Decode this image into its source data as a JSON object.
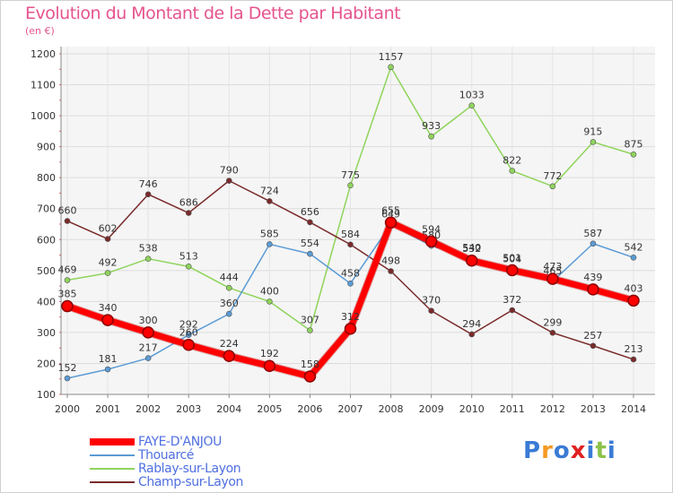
{
  "header": {
    "title": "Evolution du Montant de la Dette par Habitant",
    "subtitle": "(en €)"
  },
  "logo": {
    "text": "Proxiti",
    "colors": [
      "#3a7bd5",
      "#f59a23",
      "#3a7bd5",
      "#e02020",
      "#3a7bd5",
      "#8bc34a",
      "#3a7bd5"
    ]
  },
  "chart_data": {
    "type": "line",
    "title": "Evolution du Montant de la Dette par Habitant",
    "subtitle": "(en €)",
    "x": [
      "2000",
      "2001",
      "2002",
      "2003",
      "2004",
      "2005",
      "2006",
      "2007",
      "2008",
      "2009",
      "2010",
      "2011",
      "2012",
      "2013",
      "2014"
    ],
    "ylim": [
      100,
      1200
    ],
    "yticks": [
      100,
      200,
      300,
      400,
      500,
      600,
      700,
      800,
      900,
      1000,
      1100,
      1200
    ],
    "grid": true,
    "legend_position": "bottom-left",
    "series": [
      {
        "name": "FAYE-D'ANJOU",
        "color": "#ff0000",
        "values": [
          385,
          340,
          300,
          260,
          224,
          192,
          158,
          312,
          655,
          594,
          532,
          501,
          473,
          439,
          403
        ]
      },
      {
        "name": "Thouarcé",
        "color": "#5b9bd5",
        "values": [
          152,
          181,
          217,
          292,
          360,
          585,
          554,
          458,
          649,
          580,
          540,
          504,
          465,
          587,
          542
        ]
      },
      {
        "name": "Rablay-sur-Layon",
        "color": "#8fd45c",
        "values": [
          469,
          492,
          538,
          513,
          444,
          400,
          307,
          775,
          1157,
          933,
          1033,
          822,
          772,
          915,
          875
        ]
      },
      {
        "name": "Champ-sur-Layon",
        "color": "#7a2a2a",
        "values": [
          660,
          602,
          746,
          686,
          790,
          724,
          656,
          584,
          498,
          370,
          294,
          372,
          299,
          257,
          213
        ]
      }
    ]
  }
}
